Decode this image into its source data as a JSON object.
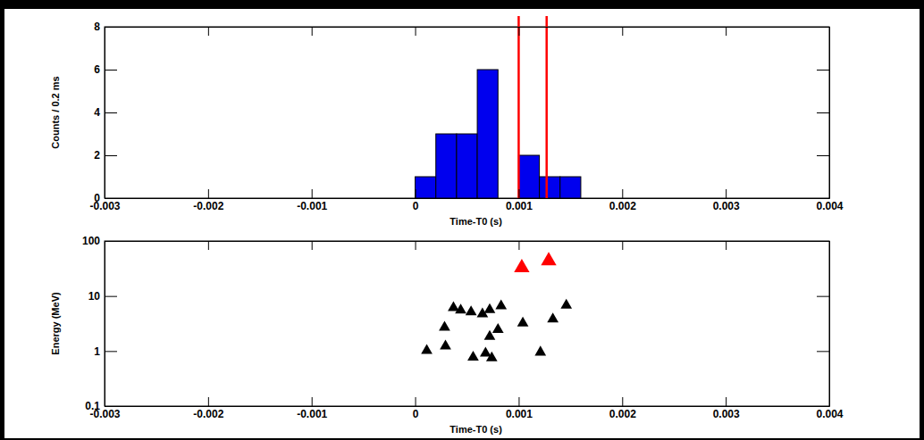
{
  "chart_data": [
    {
      "type": "histogram",
      "x_label": "Time-T0 (s)",
      "y_label": "Counts / 0.2 ms",
      "bins": [
        0,
        0.0002,
        0.0004,
        0.0006,
        0.0008,
        0.001,
        0.0012,
        0.0014,
        0.0016
      ],
      "values": [
        1,
        3,
        3,
        6,
        0,
        2,
        1,
        1
      ],
      "color": "#0000ee",
      "markers_x": [
        0.001,
        0.00127
      ],
      "xlim": [
        -0.003,
        0.004
      ],
      "xticks": [
        -0.003,
        -0.002,
        -0.001,
        0,
        0.001,
        0.002,
        0.003,
        0.004
      ],
      "ylim": [
        0,
        8
      ],
      "yticks": [
        0,
        2,
        4,
        6,
        8
      ]
    },
    {
      "type": "scatter",
      "x_label": "Time-T0 (s)",
      "y_label": "Energy (MeV)",
      "log": "y",
      "series": [
        {
          "color": "#000000",
          "marker": "triangle",
          "x": [
            0.000112,
            0.000284,
            0.000293,
            0.00037,
            0.00044,
            0.00054,
            0.00056,
            0.00065,
            0.00068,
            0.00072,
            0.00072,
            0.00074,
            0.0008,
            0.00083,
            0.00104,
            0.00121,
            0.00133,
            0.00146
          ],
          "values": [
            1.02,
            2.7,
            1.23,
            6.1,
            5.5,
            5.1,
            0.77,
            4.7,
            0.91,
            5.6,
            1.84,
            0.75,
            2.45,
            6.6,
            3.2,
            0.95,
            3.8,
            6.8
          ]
        },
        {
          "color": "#ff0000",
          "marker": "triangle",
          "x": [
            0.00103,
            0.00129
          ],
          "values": [
            32.5,
            43.6
          ]
        }
      ],
      "xlim": [
        -0.003,
        0.004
      ],
      "xticks": [
        -0.003,
        -0.002,
        -0.001,
        0,
        0.001,
        0.002,
        0.003,
        0.004
      ],
      "ylim": [
        0.1,
        100
      ],
      "yticks": [
        0.1,
        1,
        10,
        100
      ]
    }
  ]
}
